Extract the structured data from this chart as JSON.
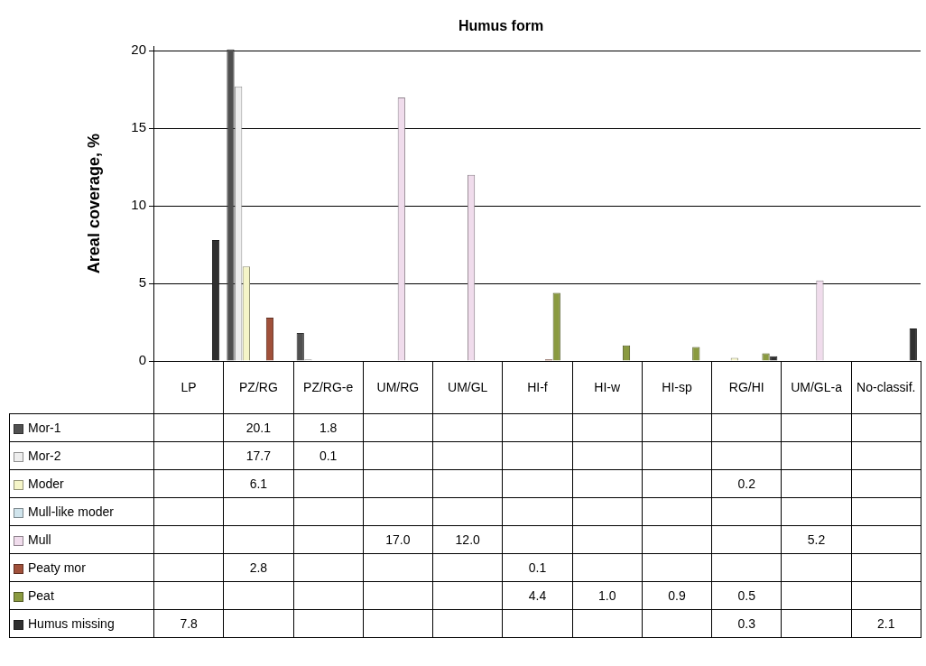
{
  "chart_data": {
    "type": "bar",
    "title": "Humus form",
    "ylabel": "Areal coverage, %",
    "categories": [
      "LP",
      "PZ/RG",
      "PZ/RG-e",
      "UM/RG",
      "UM/GL",
      "HI-f",
      "HI-w",
      "HI-sp",
      "RG/HI",
      "UM/GL-a",
      "No-classif."
    ],
    "ylim": [
      0,
      20.3
    ],
    "yticks": [
      0,
      5,
      10,
      15,
      20
    ],
    "grid": "y",
    "legend": "bottom",
    "series": [
      {
        "name": "Mor-1",
        "color": "#505050",
        "values": [
          null,
          20.1,
          1.8,
          null,
          null,
          null,
          null,
          null,
          null,
          null,
          null
        ],
        "value_labels": [
          null,
          "20.1",
          "1.8",
          null,
          null,
          null,
          null,
          null,
          null,
          null,
          null
        ]
      },
      {
        "name": "Mor-2",
        "color": "#eeeeee",
        "values": [
          null,
          17.7,
          0.1,
          null,
          null,
          null,
          null,
          null,
          null,
          null,
          null
        ],
        "value_labels": [
          null,
          "17.7",
          "0.1",
          null,
          null,
          null,
          null,
          null,
          null,
          null,
          null
        ]
      },
      {
        "name": "Moder",
        "color": "#f5f5c8",
        "values": [
          null,
          6.1,
          null,
          null,
          null,
          null,
          null,
          null,
          0.2,
          null,
          null
        ],
        "value_labels": [
          null,
          "6.1",
          null,
          null,
          null,
          null,
          null,
          null,
          "0.2",
          null,
          null
        ]
      },
      {
        "name": "Mull-like moder",
        "color": "#d0e4ec",
        "values": [
          null,
          null,
          null,
          null,
          null,
          null,
          null,
          null,
          null,
          null,
          null
        ],
        "value_labels": [
          null,
          null,
          null,
          null,
          null,
          null,
          null,
          null,
          null,
          null,
          null
        ]
      },
      {
        "name": "Mull",
        "color": "#f0dcec",
        "values": [
          null,
          null,
          null,
          17.0,
          12.0,
          null,
          null,
          null,
          null,
          5.2,
          null
        ],
        "value_labels": [
          null,
          null,
          null,
          "17.0",
          "12.0",
          null,
          null,
          null,
          null,
          "5.2",
          null
        ]
      },
      {
        "name": "Peaty mor",
        "color": "#a0503a",
        "values": [
          null,
          2.8,
          null,
          null,
          null,
          0.1,
          null,
          null,
          null,
          null,
          null
        ],
        "value_labels": [
          null,
          "2.8",
          null,
          null,
          null,
          "0.1",
          null,
          null,
          null,
          null,
          null
        ]
      },
      {
        "name": "Peat",
        "color": "#8a9a40",
        "values": [
          null,
          null,
          null,
          null,
          null,
          4.4,
          1.0,
          0.9,
          0.5,
          null,
          null
        ],
        "value_labels": [
          null,
          null,
          null,
          null,
          null,
          "4.4",
          "1.0",
          "0.9",
          "0.5",
          null,
          null
        ]
      },
      {
        "name": "Humus missing",
        "color": "#303030",
        "values": [
          7.8,
          null,
          null,
          null,
          null,
          null,
          null,
          null,
          0.3,
          null,
          2.1
        ],
        "value_labels": [
          "7.8",
          null,
          null,
          null,
          null,
          null,
          null,
          null,
          "0.3",
          null,
          "2.1"
        ]
      }
    ]
  }
}
